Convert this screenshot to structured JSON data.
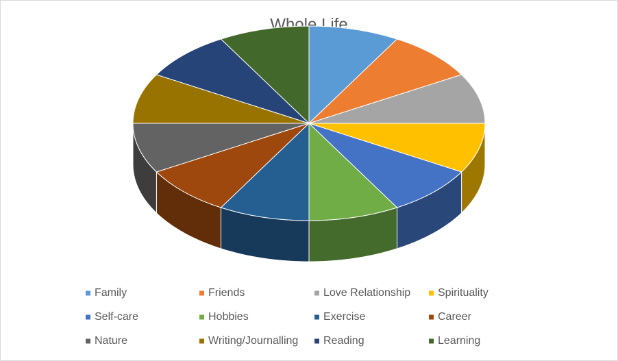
{
  "chart_data": {
    "type": "pie3d",
    "title": "Whole Life",
    "categories": [
      "Family",
      "Friends",
      "Love Relationship",
      "Spirituality",
      "Self-care",
      "Hobbies",
      "Exercise",
      "Career",
      "Nature",
      "Writing/Journalling",
      "Reading",
      "Learning"
    ],
    "values": [
      1,
      1,
      1,
      1,
      1,
      1,
      1,
      1,
      1,
      1,
      1,
      1
    ],
    "colors": [
      "#5b9bd5",
      "#ed7d31",
      "#a5a5a5",
      "#ffc000",
      "#4472c4",
      "#70ad47",
      "#255e91",
      "#9e480e",
      "#636363",
      "#997300",
      "#264478",
      "#43682b"
    ],
    "legend": "bottom"
  }
}
